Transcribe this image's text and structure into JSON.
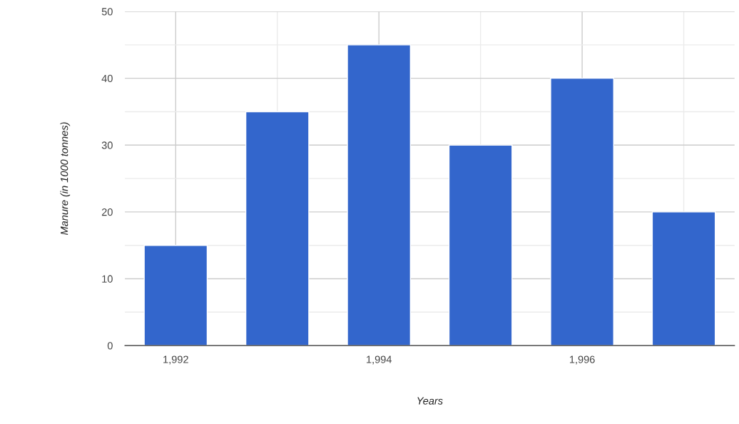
{
  "chart_data": {
    "type": "bar",
    "xlabel": "Years",
    "ylabel": "Manure (in 1000 tonnes)",
    "x": [
      1992,
      1993,
      1994,
      1995,
      1996,
      1997
    ],
    "values": [
      15,
      35,
      45,
      30,
      40,
      20
    ],
    "color": "#3366cc",
    "xlim": [
      1991.5,
      1997.5
    ],
    "xticks": [
      {
        "value": 1992,
        "label": "1,992"
      },
      {
        "value": 1993,
        "label": null
      },
      {
        "value": 1994,
        "label": "1,994"
      },
      {
        "value": 1995,
        "label": null
      },
      {
        "value": 1996,
        "label": "1,996"
      },
      {
        "value": 1997,
        "label": null
      }
    ],
    "ylim": [
      0,
      50
    ],
    "yticks": [
      0,
      {
        "value": 5,
        "label": null
      },
      10,
      {
        "value": 15,
        "label": null
      },
      20,
      {
        "value": 25,
        "label": null
      },
      30,
      {
        "value": 35,
        "label": null
      },
      40,
      {
        "value": 45,
        "label": null
      },
      50
    ],
    "grid": true
  }
}
